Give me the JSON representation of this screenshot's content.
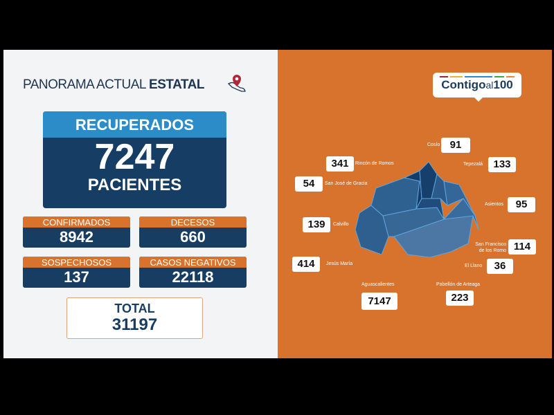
{
  "left": {
    "title_regular": "PANORAMA ACTUAL ",
    "title_bold": "ESTATAL",
    "recuperados": {
      "label": "RECUPERADOS",
      "value": "7247",
      "unit": "PACIENTES"
    },
    "stats": [
      {
        "label": "CONFIRMADOS",
        "value": "8942"
      },
      {
        "label": "DECESOS",
        "value": "660"
      },
      {
        "label": "SOSPECHOSOS",
        "value": "137"
      },
      {
        "label": "CASOS NEGATIVOS",
        "value": "22118"
      }
    ],
    "total": {
      "label": "TOTAL",
      "value": "31197"
    }
  },
  "right": {
    "logo": {
      "text_a": "Contigo",
      "text_b": "al",
      "text_c": "100"
    },
    "municipalities": [
      {
        "name": "Cosío",
        "value": "91"
      },
      {
        "name": "Rincón de Romos",
        "value": "341"
      },
      {
        "name": "Tepezalá",
        "value": "133"
      },
      {
        "name": "San José de Gracia",
        "value": "54"
      },
      {
        "name": "Asientos",
        "value": "95"
      },
      {
        "name": "Calvillo",
        "value": "139"
      },
      {
        "name": "San Francisco de los Romo",
        "value": "114"
      },
      {
        "name": "Jesús María",
        "value": "414"
      },
      {
        "name": "El Llano",
        "value": "36"
      },
      {
        "name": "Aguascalientes",
        "value": "7147"
      },
      {
        "name": "Pabellón de Arteaga",
        "value": "223"
      }
    ]
  },
  "colors": {
    "orange": "#d8732e",
    "navy": "#173d62",
    "blue": "#2c8cc8"
  }
}
